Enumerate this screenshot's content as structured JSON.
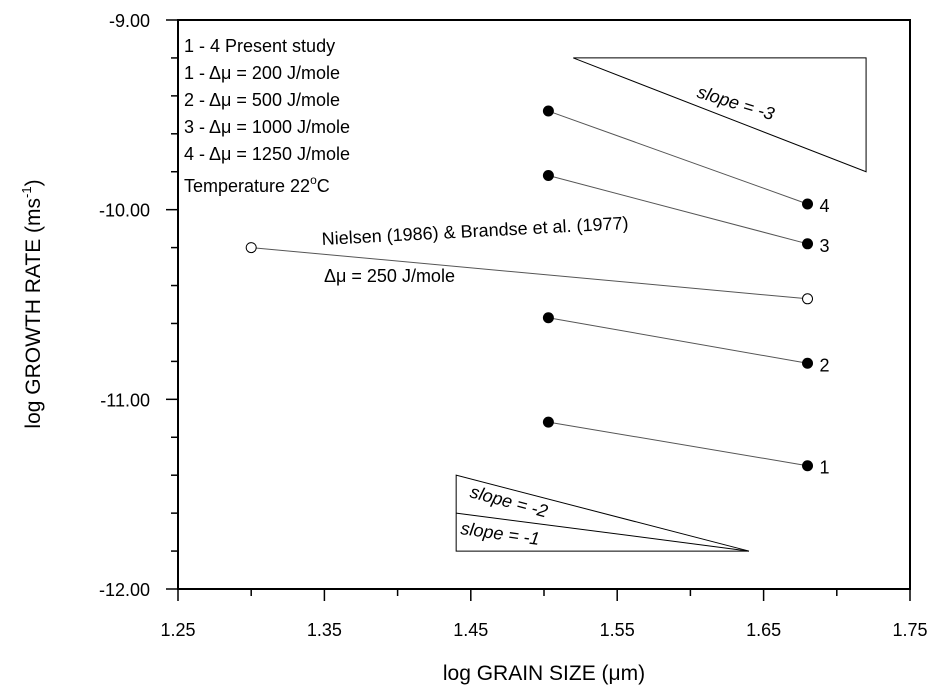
{
  "chart_data": {
    "type": "line",
    "xlabel": "log GRAIN SIZE (μm)",
    "ylabel": "log GROWTH RATE (ms",
    "ylabel_sup": "-1",
    "ylabel_close": ")",
    "xlim": [
      1.25,
      1.75
    ],
    "ylim": [
      -12.0,
      -9.0
    ],
    "xticks": [
      1.25,
      1.35,
      1.45,
      1.55,
      1.65,
      1.75
    ],
    "xtick_labels": [
      "1.25",
      "1.35",
      "1.45",
      "1.55",
      "1.65",
      "1.75"
    ],
    "yticks": [
      -9.0,
      -10.0,
      -11.0,
      -12.0
    ],
    "ytick_labels": [
      "-9.00",
      "-10.00",
      "-11.00",
      "-12.00"
    ],
    "grid": false,
    "legend": {
      "lines": [
        "1 - 4 Present study",
        "1 - Δμ = 200 J/mole",
        "2 - Δμ = 500 J/mole",
        "3 - Δμ = 1000 J/mole",
        "4 - Δμ = 1250 J/mole"
      ],
      "temperature_prefix": "Temperature 22",
      "temperature_deg": "o",
      "temperature_unit": "C"
    },
    "series": [
      {
        "name": "1",
        "marker": "filled",
        "x": [
          1.503,
          1.68
        ],
        "y": [
          -11.12,
          -11.35
        ]
      },
      {
        "name": "2",
        "marker": "filled",
        "x": [
          1.503,
          1.68
        ],
        "y": [
          -10.57,
          -10.81
        ]
      },
      {
        "name": "3",
        "marker": "filled",
        "x": [
          1.503,
          1.68
        ],
        "y": [
          -9.82,
          -10.18
        ]
      },
      {
        "name": "4",
        "marker": "filled",
        "x": [
          1.503,
          1.68
        ],
        "y": [
          -9.48,
          -9.97
        ]
      },
      {
        "name": "",
        "marker": "open",
        "x": [
          1.3,
          1.68
        ],
        "y": [
          -10.2,
          -10.47
        ]
      }
    ],
    "annotations": {
      "nielsen_line1": "Nielsen (1986) & Brandse et al. (1977)",
      "nielsen_line2": "Δμ = 250 J/mole",
      "slope_3": "slope = -3",
      "slope_2": "slope = -2",
      "slope_1": "slope = -1"
    },
    "triangles": {
      "slope_3": {
        "points": [
          [
            1.52,
            -9.2
          ],
          [
            1.72,
            -9.2
          ],
          [
            1.72,
            -9.8
          ]
        ]
      },
      "slope_2_1": {
        "points": [
          [
            1.44,
            -11.4
          ],
          [
            1.44,
            -11.8
          ],
          [
            1.64,
            -11.8
          ]
        ],
        "inner_line": [
          [
            1.44,
            -11.6
          ],
          [
            1.64,
            -11.8
          ]
        ]
      }
    }
  }
}
